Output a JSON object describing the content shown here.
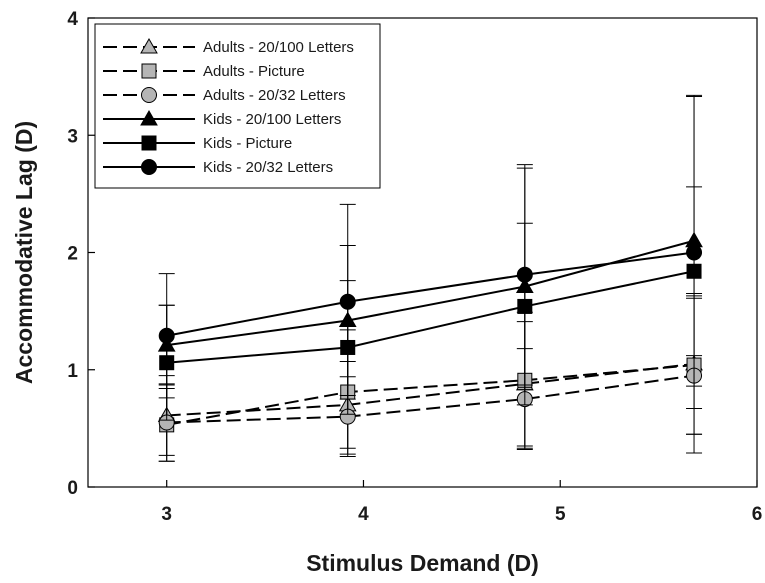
{
  "chart_data": {
    "type": "line",
    "xlabel": "Stimulus Demand (D)",
    "ylabel": "Accommodative Lag (D)",
    "xlim": [
      2.6,
      6
    ],
    "ylim": [
      0,
      4
    ],
    "xticks": [
      3,
      4,
      5,
      6
    ],
    "yticks": [
      0,
      1,
      2,
      3,
      4
    ],
    "grid": false,
    "legend_position": "top-left",
    "series": [
      {
        "name": "Adults - 20/100 Letters",
        "line": "dashed",
        "marker": "triangle",
        "fill": "#b5b5b5",
        "x": [
          3,
          3.92,
          4.82,
          5.68
        ],
        "y": [
          0.61,
          0.7,
          0.88,
          1.05
        ],
        "err": [
          0.34,
          0.37,
          0.53,
          0.6
        ]
      },
      {
        "name": "Adults - Picture",
        "line": "dashed",
        "marker": "square",
        "fill": "#b5b5b5",
        "x": [
          3,
          3.92,
          4.82,
          5.68
        ],
        "y": [
          0.53,
          0.81,
          0.91,
          1.04
        ],
        "err": [
          0.31,
          0.53,
          0.58,
          0.59
        ]
      },
      {
        "name": "Adults - 20/32 Letters",
        "line": "dashed",
        "marker": "circle",
        "fill": "#b5b5b5",
        "x": [
          3,
          3.92,
          4.82,
          5.68
        ],
        "y": [
          0.55,
          0.6,
          0.75,
          0.95
        ],
        "err": [
          0.33,
          0.34,
          0.43,
          0.66
        ]
      },
      {
        "name": "Kids - 20/100 Letters",
        "line": "solid",
        "marker": "triangle",
        "fill": "#000000",
        "x": [
          3,
          3.92,
          4.82,
          5.68
        ],
        "y": [
          1.21,
          1.42,
          1.71,
          2.1
        ],
        "err": [
          0.34,
          0.64,
          1.01,
          1.24
        ]
      },
      {
        "name": "Kids - Picture",
        "line": "solid",
        "marker": "square",
        "fill": "#000000",
        "x": [
          3,
          3.92,
          4.82,
          5.68
        ],
        "y": [
          1.06,
          1.19,
          1.54,
          1.84
        ],
        "err": [
          0.49,
          0.57,
          0.71,
          0.72
        ]
      },
      {
        "name": "Kids - 20/32 Letters",
        "line": "solid",
        "marker": "circle",
        "fill": "#000000",
        "x": [
          3,
          3.92,
          4.82,
          5.68
        ],
        "y": [
          1.29,
          1.58,
          1.81,
          2.0
        ],
        "err": [
          0.53,
          0.83,
          0.94,
          1.33
        ]
      }
    ]
  }
}
